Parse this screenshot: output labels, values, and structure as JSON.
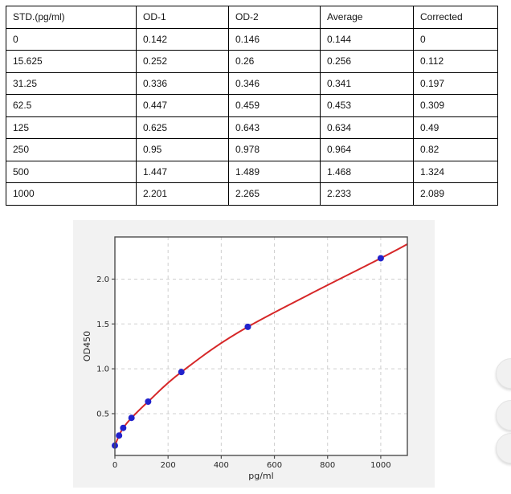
{
  "table": {
    "columns": [
      "STD.(pg/ml)",
      "OD-1",
      "OD-2",
      "Average",
      "Corrected"
    ],
    "rows": [
      [
        "0",
        "0.142",
        "0.146",
        "0.144",
        "0"
      ],
      [
        "15.625",
        "0.252",
        "0.26",
        "0.256",
        "0.112"
      ],
      [
        "31.25",
        "0.336",
        "0.346",
        "0.341",
        "0.197"
      ],
      [
        "62.5",
        "0.447",
        "0.459",
        "0.453",
        "0.309"
      ],
      [
        "125",
        "0.625",
        "0.643",
        "0.634",
        "0.49"
      ],
      [
        "250",
        "0.95",
        "0.978",
        "0.964",
        "0.82"
      ],
      [
        "500",
        "1.447",
        "1.489",
        "1.468",
        "1.324"
      ],
      [
        "1000",
        "2.201",
        "2.265",
        "2.233",
        "2.089"
      ]
    ]
  },
  "chart_data": {
    "type": "scatter",
    "title": "",
    "xlabel": "pg/ml",
    "ylabel": "OD450",
    "x": [
      0,
      15.625,
      31.25,
      62.5,
      125,
      250,
      500,
      1000
    ],
    "y": [
      0.144,
      0.256,
      0.341,
      0.453,
      0.634,
      0.964,
      1.468,
      2.233
    ],
    "fit_curve": {
      "description": "fitted standard curve through averaged ODs, extrapolated to x-max",
      "x": [
        0,
        15.625,
        31.25,
        62.5,
        125,
        250,
        500,
        1000,
        1100
      ],
      "y": [
        0.144,
        0.256,
        0.341,
        0.453,
        0.634,
        0.964,
        1.468,
        2.233,
        2.39
      ]
    },
    "xlim": [
      0,
      1100
    ],
    "ylim": [
      0.034,
      2.47
    ],
    "xticks": [
      0,
      200,
      400,
      600,
      800,
      1000
    ],
    "xtick_labels": [
      "0",
      "200",
      "400",
      "600",
      "800",
      "1000"
    ],
    "yticks": [
      0.5,
      1.0,
      1.5,
      2.0
    ],
    "ytick_labels": [
      "0.5",
      "1.0",
      "1.5",
      "2.0"
    ],
    "grid": true,
    "legend": "none",
    "colors": {
      "point": "#2222cc",
      "curve": "#d62728",
      "grid": "#cfcfcf",
      "spine": "#4d4d4d",
      "figure_bg": "#f2f2f2",
      "plot_bg": "#ffffff",
      "text": "#262626"
    }
  },
  "floating_buttons": [
    {
      "name": "floating-button-top"
    },
    {
      "name": "floating-button-middle"
    },
    {
      "name": "floating-button-bottom"
    }
  ]
}
